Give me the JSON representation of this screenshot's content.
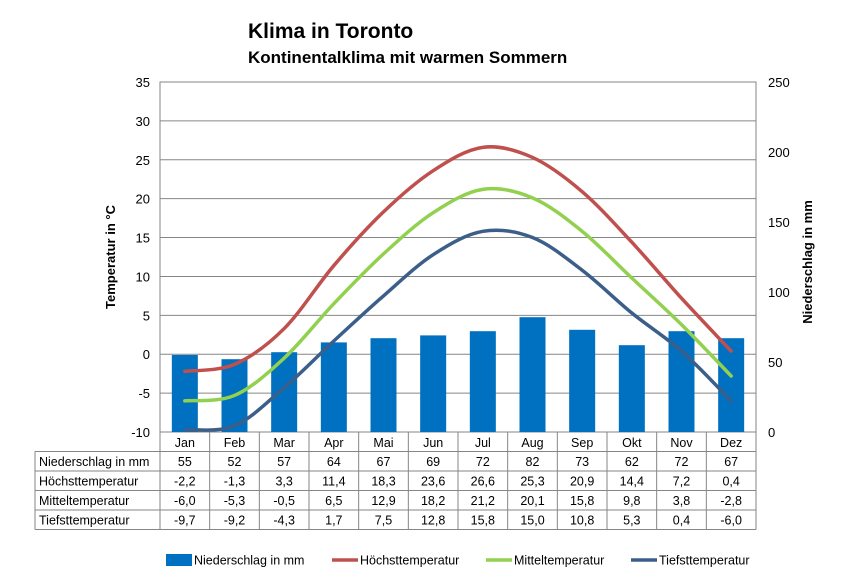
{
  "chart_data": {
    "type": "bar+line",
    "title": "Klima in Toronto",
    "subtitle": "Kontinentalklima mit warmen Sommern",
    "ylabel_left": "Temperatur in °C",
    "ylabel_right": "Niederschlag in mm",
    "ylim_left": [
      -10,
      35
    ],
    "ylim_right": [
      0,
      250
    ],
    "yticks_left": [
      "35",
      "30",
      "25",
      "20",
      "15",
      "10",
      "5",
      "0",
      "-5",
      "-10"
    ],
    "yticks_right": [
      "250",
      "200",
      "150",
      "100",
      "50",
      "0"
    ],
    "categories": [
      "Jan",
      "Feb",
      "Mar",
      "Apr",
      "Mai",
      "Jun",
      "Jul",
      "Aug",
      "Sep",
      "Okt",
      "Nov",
      "Dez"
    ],
    "grid": true,
    "legend_position": "bottom",
    "colors": {
      "Niederschlag": "#0070c0",
      "Höchsttemperatur": "#c0504d",
      "Mitteltemperatur": "#92d050",
      "Tiefsttemperatur": "#3c5f8a"
    },
    "series": [
      {
        "name": "Niederschlag in mm",
        "type": "bar",
        "axis": "right",
        "values": [
          55,
          52,
          57,
          64,
          67,
          69,
          72,
          82,
          73,
          62,
          72,
          67
        ],
        "labels": [
          "55",
          "52",
          "57",
          "64",
          "67",
          "69",
          "72",
          "82",
          "73",
          "62",
          "72",
          "67"
        ]
      },
      {
        "name": "Höchsttemperatur",
        "type": "line",
        "axis": "left",
        "values": [
          -2.2,
          -1.3,
          3.3,
          11.4,
          18.3,
          23.6,
          26.6,
          25.3,
          20.9,
          14.4,
          7.2,
          0.4
        ],
        "labels": [
          "-2,2",
          "-1,3",
          "3,3",
          "11,4",
          "18,3",
          "23,6",
          "26,6",
          "25,3",
          "20,9",
          "14,4",
          "7,2",
          "0,4"
        ]
      },
      {
        "name": "Mitteltemperatur",
        "type": "line",
        "axis": "left",
        "values": [
          -6.0,
          -5.3,
          -0.5,
          6.5,
          12.9,
          18.2,
          21.2,
          20.1,
          15.8,
          9.8,
          3.8,
          -2.8
        ],
        "labels": [
          "-6,0",
          "-5,3",
          "-0,5",
          "6,5",
          "12,9",
          "18,2",
          "21,2",
          "20,1",
          "15,8",
          "9,8",
          "3,8",
          "-2,8"
        ]
      },
      {
        "name": "Tiefsttemperatur",
        "type": "line",
        "axis": "left",
        "values": [
          -9.7,
          -9.2,
          -4.3,
          1.7,
          7.5,
          12.8,
          15.8,
          15.0,
          10.8,
          5.3,
          0.4,
          -6.0
        ],
        "labels": [
          "-9,7",
          "-9,2",
          "-4,3",
          "1,7",
          "7,5",
          "12,8",
          "15,8",
          "15,0",
          "10,8",
          "5,3",
          "0,4",
          "-6,0"
        ]
      }
    ]
  }
}
